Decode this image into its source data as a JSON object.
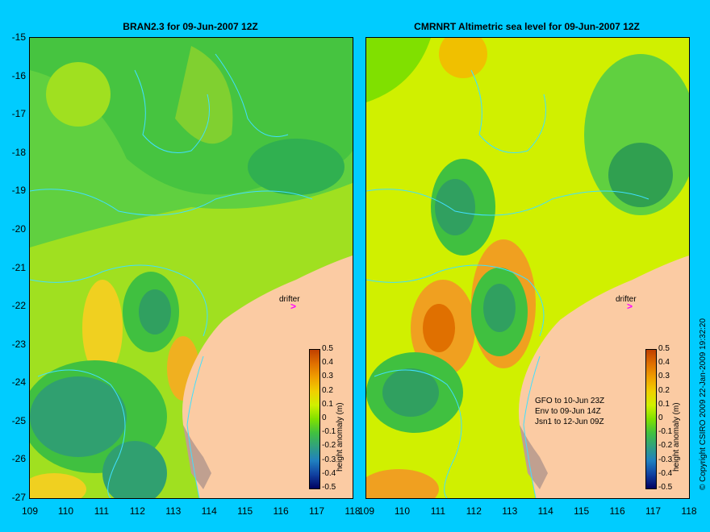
{
  "left_title": "BRAN2.3 for 09-Jun-2007 12Z",
  "right_title": "CMRNRT Altimetric sea level  for 09-Jun-2007 12Z",
  "y_ticks": [
    "-15",
    "-16",
    "-17",
    "-18",
    "-19",
    "-20",
    "-21",
    "-22",
    "-23",
    "-24",
    "-25",
    "-26",
    "-27"
  ],
  "x_ticks": [
    "109",
    "110",
    "111",
    "112",
    "113",
    "114",
    "115",
    "116",
    "117",
    "118"
  ],
  "colorbar": {
    "label": "height anomaly (m)",
    "ticks": [
      "0.5",
      "0.4",
      "0.3",
      "0.2",
      "0.1",
      "0",
      "-0.1",
      "-0.2",
      "-0.3",
      "-0.4",
      "-0.5"
    ],
    "colors": [
      "#c04000",
      "#e07000",
      "#f0a000",
      "#f0d000",
      "#d0f000",
      "#80e000",
      "#40c040",
      "#30a080",
      "#2080c0",
      "#1040a0",
      "#000060"
    ]
  },
  "drifter_label": "drifter",
  "right_legend": [
    "GFO to 10-Jun 23Z",
    "Env to 09-Jun 14Z",
    "Jsn1 to 12-Jun 09Z"
  ],
  "copyright": "© Copyright CSIRO 2009   22-Jan-2009 19:32:20",
  "colors": {
    "background": "#00ccff",
    "land": "#fbcba3",
    "contour": "#40e0ff",
    "drifter": "#ff00ff"
  }
}
